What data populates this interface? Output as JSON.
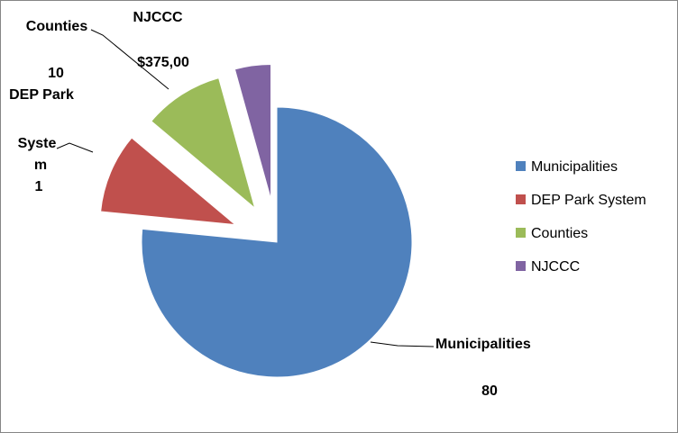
{
  "chart_data": {
    "type": "pie",
    "exploded": true,
    "legend_position": "right",
    "slices": [
      {
        "name": "Municipalities",
        "value": 80,
        "color": "#4F81BD",
        "label_lines": [
          "Municipalities",
          "80"
        ]
      },
      {
        "name": "DEP Park System",
        "value": 10,
        "color": "#C0504D",
        "label_lines": [
          "10",
          "DEP Park",
          "Syste",
          "m",
          "1"
        ]
      },
      {
        "name": "Counties",
        "value": 10,
        "color": "#9BBB59",
        "label_lines": [
          "Counties",
          "$375,00"
        ]
      },
      {
        "name": "NJCCC",
        "value": 4.5,
        "color": "#8064A2",
        "label_lines": [
          "NJCCC"
        ]
      }
    ]
  }
}
